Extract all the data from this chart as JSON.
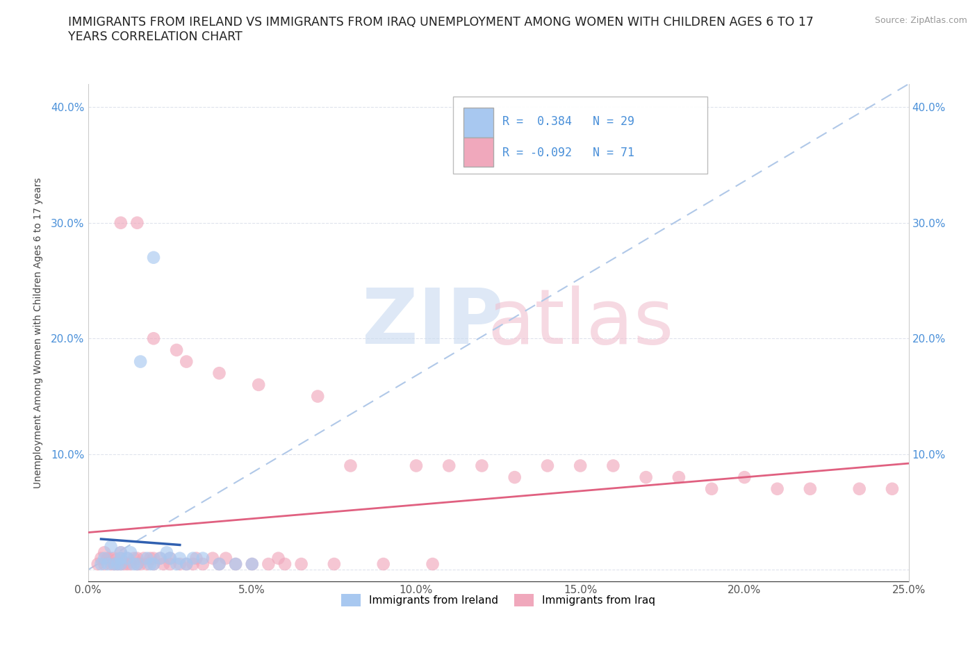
{
  "title_line1": "IMMIGRANTS FROM IRELAND VS IMMIGRANTS FROM IRAQ UNEMPLOYMENT AMONG WOMEN WITH CHILDREN AGES 6 TO 17",
  "title_line2": "YEARS CORRELATION CHART",
  "ylabel": "Unemployment Among Women with Children Ages 6 to 17 years",
  "source": "Source: ZipAtlas.com",
  "xlim": [
    0.0,
    0.25
  ],
  "ylim": [
    -0.01,
    0.42
  ],
  "ireland_color": "#a8c8f0",
  "iraq_color": "#f0a8bc",
  "ireland_R": 0.384,
  "ireland_N": 29,
  "iraq_R": -0.092,
  "iraq_N": 71,
  "ireland_line_color": "#3060b0",
  "iraq_line_color": "#e06080",
  "diagonal_color": "#b0c8e8",
  "ireland_x": [
    0.004,
    0.005,
    0.006,
    0.007,
    0.008,
    0.009,
    0.01,
    0.01,
    0.01,
    0.012,
    0.013,
    0.014,
    0.015,
    0.016,
    0.018,
    0.019,
    0.02,
    0.02,
    0.022,
    0.024,
    0.025,
    0.027,
    0.028,
    0.03,
    0.032,
    0.035,
    0.04,
    0.045,
    0.05
  ],
  "ireland_y": [
    0.005,
    0.01,
    0.005,
    0.02,
    0.005,
    0.005,
    0.005,
    0.01,
    0.015,
    0.01,
    0.015,
    0.005,
    0.005,
    0.18,
    0.01,
    0.005,
    0.005,
    0.27,
    0.01,
    0.015,
    0.01,
    0.005,
    0.01,
    0.005,
    0.01,
    0.01,
    0.005,
    0.005,
    0.005
  ],
  "iraq_x": [
    0.003,
    0.004,
    0.005,
    0.005,
    0.006,
    0.007,
    0.007,
    0.008,
    0.008,
    0.009,
    0.01,
    0.01,
    0.01,
    0.01,
    0.011,
    0.012,
    0.012,
    0.013,
    0.014,
    0.015,
    0.015,
    0.015,
    0.016,
    0.017,
    0.018,
    0.019,
    0.02,
    0.02,
    0.02,
    0.022,
    0.023,
    0.025,
    0.025,
    0.027,
    0.028,
    0.03,
    0.03,
    0.032,
    0.033,
    0.035,
    0.038,
    0.04,
    0.04,
    0.042,
    0.045,
    0.05,
    0.052,
    0.055,
    0.058,
    0.06,
    0.065,
    0.07,
    0.075,
    0.08,
    0.09,
    0.1,
    0.105,
    0.11,
    0.12,
    0.13,
    0.14,
    0.15,
    0.16,
    0.17,
    0.18,
    0.19,
    0.2,
    0.21,
    0.22,
    0.235,
    0.245
  ],
  "iraq_y": [
    0.005,
    0.01,
    0.005,
    0.015,
    0.01,
    0.005,
    0.01,
    0.005,
    0.01,
    0.005,
    0.005,
    0.01,
    0.015,
    0.3,
    0.005,
    0.005,
    0.01,
    0.005,
    0.01,
    0.005,
    0.01,
    0.3,
    0.005,
    0.01,
    0.005,
    0.01,
    0.005,
    0.01,
    0.2,
    0.01,
    0.005,
    0.005,
    0.01,
    0.19,
    0.005,
    0.005,
    0.18,
    0.005,
    0.01,
    0.005,
    0.01,
    0.005,
    0.17,
    0.01,
    0.005,
    0.005,
    0.16,
    0.005,
    0.01,
    0.005,
    0.005,
    0.15,
    0.005,
    0.09,
    0.005,
    0.09,
    0.005,
    0.09,
    0.09,
    0.08,
    0.09,
    0.09,
    0.09,
    0.08,
    0.08,
    0.07,
    0.08,
    0.07,
    0.07,
    0.07,
    0.07
  ]
}
